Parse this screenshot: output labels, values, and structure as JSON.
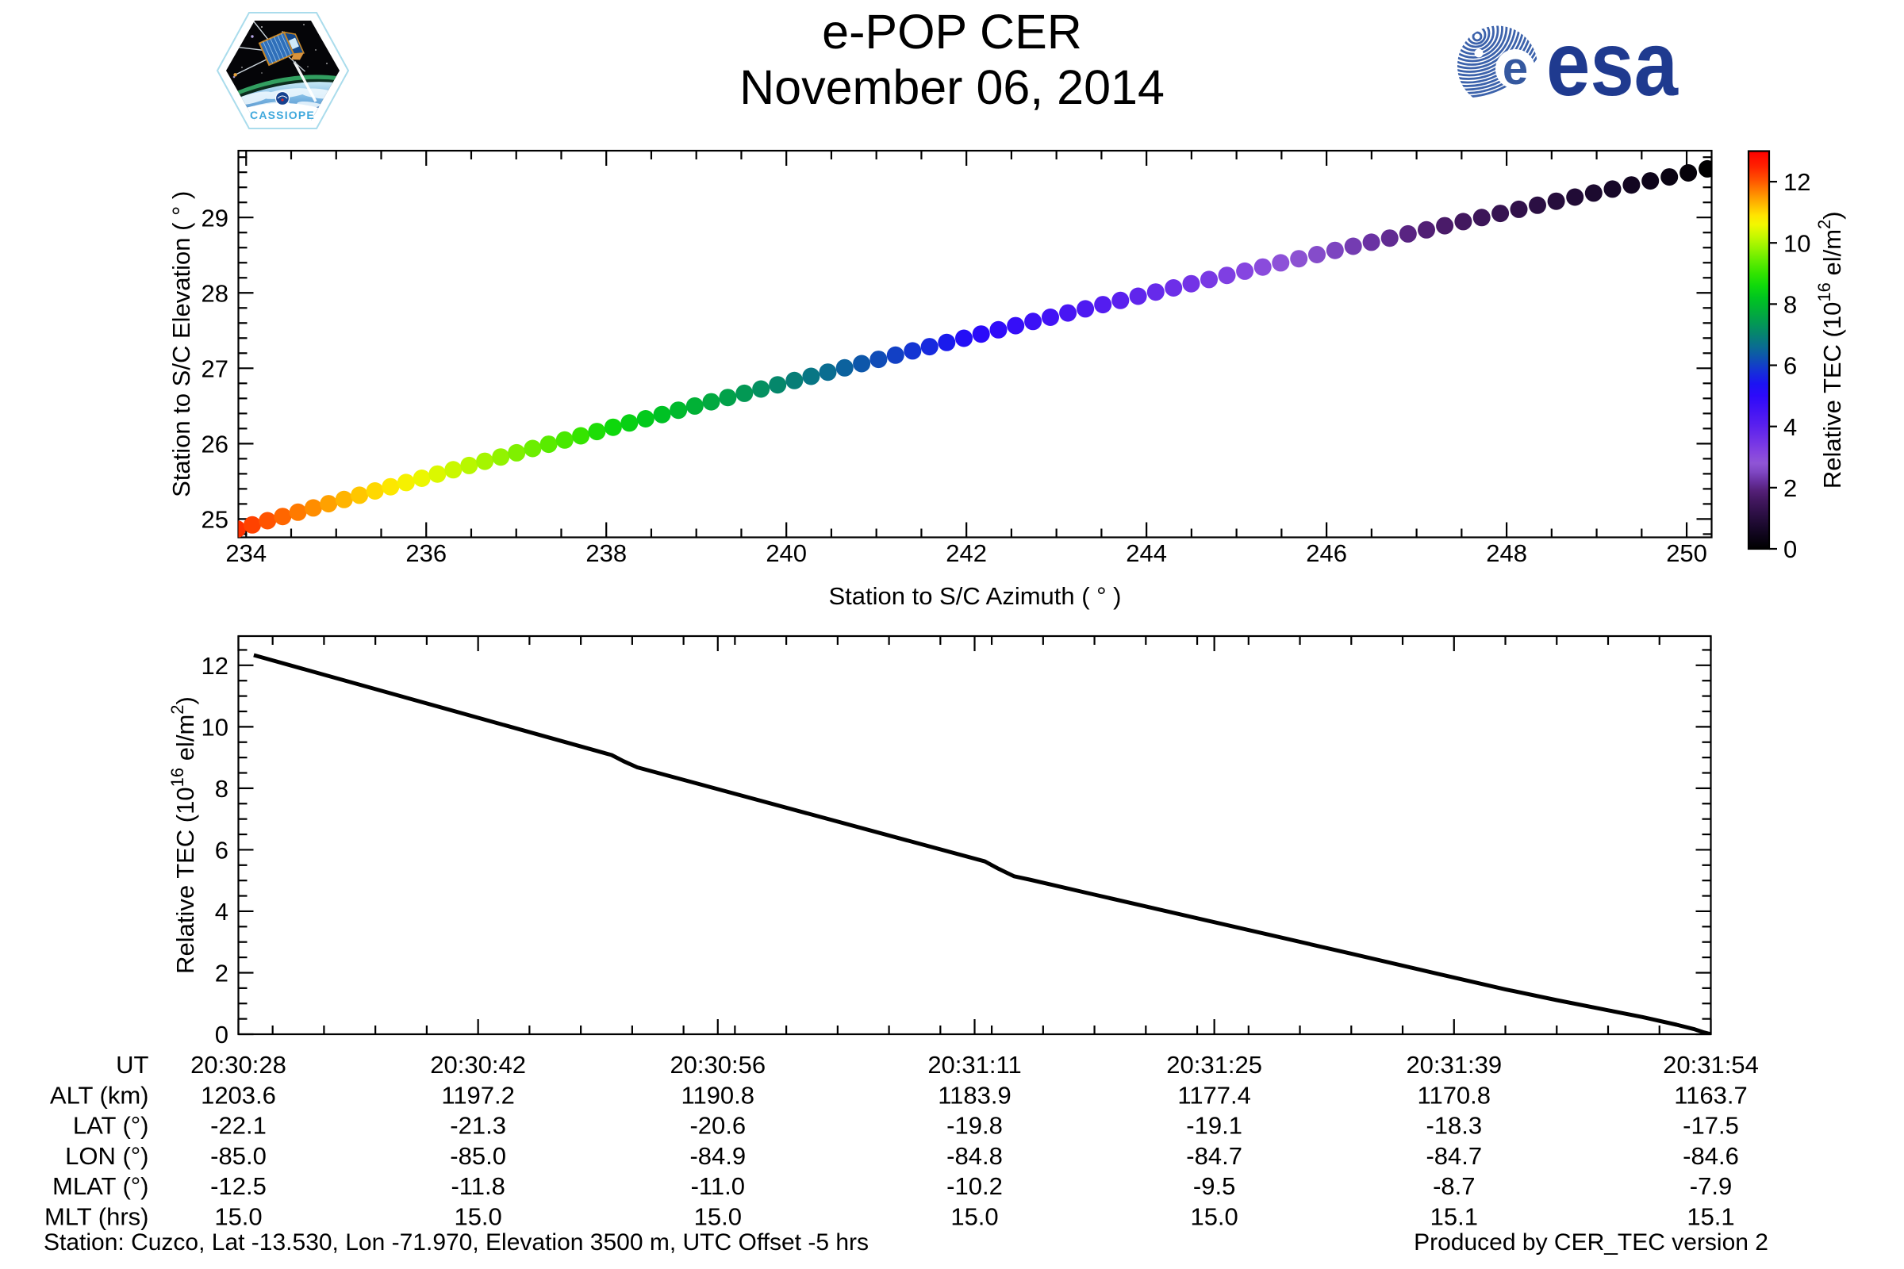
{
  "header": {
    "title": "e-POP CER",
    "date": "November 06, 2014",
    "esa_wordmark": "esa",
    "patch_text": "CASSIOPE"
  },
  "footer": {
    "station": "Station: Cuzco, Lat -13.530, Lon -71.970, Elevation 3500 m, UTC Offset -5 hrs",
    "produced": "Produced by CER_TEC version 2"
  },
  "colors": {
    "esa_blue": "#1f3a8f",
    "esa_stripe": "#3c62ab",
    "patch_text_blue": "#41a8dc",
    "line": "#000000",
    "background": "#ffffff"
  },
  "colorbar": {
    "label_parts": {
      "prefix": "Relative TEC (10",
      "sup1": "16",
      "mid": " el/m",
      "sup2": "2",
      "suffix": ")"
    },
    "ticks": [
      0,
      2,
      4,
      6,
      8,
      10,
      12
    ],
    "vmin": 0,
    "vmax": 13,
    "stops": [
      [
        0.0,
        "#000000"
      ],
      [
        0.4,
        "#0d0418"
      ],
      [
        0.8,
        "#1d0a30"
      ],
      [
        1.2,
        "#2f1048"
      ],
      [
        1.6,
        "#431860"
      ],
      [
        1.9,
        "#542078"
      ],
      [
        2.2,
        "#68309f"
      ],
      [
        2.5,
        "#7e46c2"
      ],
      [
        2.8,
        "#8f55d6"
      ],
      [
        3.1,
        "#8746df"
      ],
      [
        3.5,
        "#7434e6"
      ],
      [
        4.0,
        "#5b21ee"
      ],
      [
        4.5,
        "#4414f4"
      ],
      [
        5.0,
        "#2d0afa"
      ],
      [
        5.4,
        "#1c14f2"
      ],
      [
        5.8,
        "#1530d8"
      ],
      [
        6.2,
        "#0f4fb4"
      ],
      [
        6.6,
        "#0a6c92"
      ],
      [
        7.0,
        "#068370"
      ],
      [
        7.4,
        "#039a52"
      ],
      [
        7.8,
        "#01b037"
      ],
      [
        8.2,
        "#00c520"
      ],
      [
        8.6,
        "#0fd90b"
      ],
      [
        9.0,
        "#32e400"
      ],
      [
        9.4,
        "#5fec00"
      ],
      [
        9.8,
        "#92f300"
      ],
      [
        10.2,
        "#c4f800"
      ],
      [
        10.6,
        "#f2f700"
      ],
      [
        10.9,
        "#ffe400"
      ],
      [
        11.3,
        "#ffb400"
      ],
      [
        11.7,
        "#ff8000"
      ],
      [
        12.1,
        "#ff4d00"
      ],
      [
        12.5,
        "#ff2200"
      ],
      [
        13.0,
        "#ff0000"
      ]
    ]
  },
  "chart_data": [
    {
      "type": "scatter",
      "xlabel": "Station to S/C Azimuth ( ° )",
      "ylabel": "Station to S/C Elevation ( ° )",
      "xlim": [
        233.914,
        250.277
      ],
      "ylim": [
        24.757,
        29.886
      ],
      "xticks": [
        234,
        236,
        238,
        240,
        242,
        244,
        246,
        248,
        250
      ],
      "xminor_step": 0.5,
      "yticks": [
        25,
        26,
        27,
        28,
        29
      ],
      "yminor_step": 0.2,
      "color_by": "Relative TEC",
      "points": [
        [
          233.9,
          24.866,
          12.35
        ],
        [
          234.068,
          24.922,
          12.2
        ],
        [
          234.237,
          24.978,
          12.05
        ],
        [
          234.406,
          25.034,
          11.9
        ],
        [
          234.576,
          25.091,
          11.75
        ],
        [
          234.746,
          25.147,
          11.6
        ],
        [
          234.916,
          25.203,
          11.45
        ],
        [
          235.088,
          25.259,
          11.3
        ],
        [
          235.259,
          25.316,
          11.15
        ],
        [
          235.431,
          25.372,
          11.0
        ],
        [
          235.604,
          25.428,
          10.85
        ],
        [
          235.777,
          25.484,
          10.7
        ],
        [
          235.951,
          25.541,
          10.55
        ],
        [
          236.125,
          25.597,
          10.4
        ],
        [
          236.3,
          25.653,
          10.25
        ],
        [
          236.476,
          25.71,
          10.1
        ],
        [
          236.651,
          25.766,
          9.95
        ],
        [
          236.828,
          25.823,
          9.8
        ],
        [
          237.004,
          25.879,
          9.65
        ],
        [
          237.182,
          25.935,
          9.5
        ],
        [
          237.36,
          25.992,
          9.35
        ],
        [
          237.538,
          26.048,
          9.2
        ],
        [
          237.717,
          26.104,
          9.023
        ],
        [
          237.896,
          26.161,
          8.755
        ],
        [
          238.076,
          26.217,
          8.574
        ],
        [
          238.256,
          26.274,
          8.424
        ],
        [
          238.437,
          26.33,
          8.273
        ],
        [
          238.619,
          26.386,
          8.122
        ],
        [
          238.801,
          26.443,
          7.972
        ],
        [
          238.983,
          26.499,
          7.821
        ],
        [
          239.166,
          26.555,
          7.67
        ],
        [
          239.35,
          26.612,
          7.519
        ],
        [
          239.534,
          26.668,
          7.369
        ],
        [
          239.718,
          26.724,
          7.218
        ],
        [
          239.903,
          26.78,
          7.067
        ],
        [
          240.089,
          26.837,
          6.916
        ],
        [
          240.275,
          26.893,
          6.766
        ],
        [
          240.461,
          26.949,
          6.615
        ],
        [
          240.648,
          27.005,
          6.464
        ],
        [
          240.836,
          27.061,
          6.313
        ],
        [
          241.024,
          27.118,
          6.163
        ],
        [
          241.213,
          27.174,
          6.012
        ],
        [
          241.402,
          27.23,
          5.861
        ],
        [
          241.591,
          27.286,
          5.71
        ],
        [
          241.781,
          27.342,
          5.5
        ],
        [
          241.972,
          27.398,
          5.22
        ],
        [
          242.163,
          27.454,
          5.054
        ],
        [
          242.355,
          27.51,
          4.927
        ],
        [
          242.547,
          27.565,
          4.799
        ],
        [
          242.74,
          27.621,
          4.67
        ],
        [
          242.933,
          27.677,
          4.542
        ],
        [
          243.127,
          27.733,
          4.414
        ],
        [
          243.321,
          27.788,
          4.285
        ],
        [
          243.516,
          27.844,
          4.157
        ],
        [
          243.711,
          27.9,
          4.028
        ],
        [
          243.907,
          27.955,
          3.9
        ],
        [
          244.103,
          28.011,
          3.772
        ],
        [
          244.3,
          28.066,
          3.643
        ],
        [
          244.497,
          28.122,
          3.515
        ],
        [
          244.695,
          28.177,
          3.386
        ],
        [
          244.893,
          28.232,
          3.258
        ],
        [
          245.092,
          28.288,
          3.129
        ],
        [
          245.291,
          28.343,
          3.001
        ],
        [
          245.491,
          28.398,
          2.873
        ],
        [
          245.692,
          28.453,
          2.744
        ],
        [
          245.893,
          28.508,
          2.616
        ],
        [
          246.094,
          28.563,
          2.487
        ],
        [
          246.296,
          28.618,
          2.359
        ],
        [
          246.498,
          28.672,
          2.231
        ],
        [
          246.701,
          28.727,
          2.102
        ],
        [
          246.905,
          28.782,
          1.974
        ],
        [
          247.109,
          28.836,
          1.845
        ],
        [
          247.313,
          28.891,
          1.717
        ],
        [
          247.518,
          28.945,
          1.588
        ],
        [
          247.723,
          28.999,
          1.46
        ],
        [
          247.93,
          29.054,
          1.347
        ],
        [
          248.136,
          29.108,
          1.233
        ],
        [
          248.343,
          29.162,
          1.12
        ],
        [
          248.551,
          29.216,
          1.007
        ],
        [
          248.759,
          29.27,
          0.893
        ],
        [
          248.967,
          29.324,
          0.78
        ],
        [
          249.176,
          29.377,
          0.662
        ],
        [
          249.386,
          29.431,
          0.545
        ],
        [
          249.596,
          29.485,
          0.427
        ],
        [
          249.807,
          29.538,
          0.31
        ],
        [
          250.018,
          29.591,
          0.17
        ],
        [
          250.229,
          29.645,
          0.0
        ]
      ]
    },
    {
      "type": "line",
      "ylabel_parts": {
        "prefix": "Relative TEC (10",
        "sup1": "16",
        "mid": " el/m",
        "sup2": "2",
        "suffix": ")"
      },
      "xlim": [
        0,
        86
      ],
      "ylim": [
        0,
        12.95
      ],
      "xticks": [
        {
          "t": 0,
          "label": "20:30:28"
        },
        {
          "t": 14,
          "label": "20:30:42"
        },
        {
          "t": 28,
          "label": "20:30:56"
        },
        {
          "t": 43,
          "label": "20:31:11"
        },
        {
          "t": 57,
          "label": "20:31:25"
        },
        {
          "t": 71,
          "label": "20:31:39"
        },
        {
          "t": 86,
          "label": "20:31:54"
        }
      ],
      "xminor_step": 3,
      "xminor_offset": 2,
      "yticks": [
        0,
        2,
        4,
        6,
        8,
        10,
        12
      ],
      "yminor_step": 0.5,
      "points": [
        [
          0.9,
          12.33
        ],
        [
          21.8,
          9.08
        ],
        [
          22.5,
          8.88
        ],
        [
          23.3,
          8.68
        ],
        [
          43.6,
          5.62
        ],
        [
          44.4,
          5.38
        ],
        [
          45.3,
          5.14
        ],
        [
          46.2,
          5.03
        ],
        [
          50,
          4.54
        ],
        [
          55,
          3.9
        ],
        [
          60,
          3.26
        ],
        [
          65,
          2.62
        ],
        [
          70,
          1.97
        ],
        [
          74,
          1.46
        ],
        [
          77,
          1.11
        ],
        [
          80,
          0.78
        ],
        [
          82,
          0.56
        ],
        [
          84,
          0.31
        ],
        [
          85,
          0.17
        ],
        [
          85.6,
          0.06
        ],
        [
          86,
          0.0
        ]
      ]
    }
  ],
  "table": {
    "rows": [
      {
        "label": "UT",
        "values": [
          "20:30:28",
          "20:30:42",
          "20:30:56",
          "20:31:11",
          "20:31:25",
          "20:31:39",
          "20:31:54"
        ]
      },
      {
        "label": "ALT (km)",
        "values": [
          "1203.6",
          "1197.2",
          "1190.8",
          "1183.9",
          "1177.4",
          "1170.8",
          "1163.7"
        ]
      },
      {
        "label": "LAT (°)",
        "values": [
          "-22.1",
          "-21.3",
          "-20.6",
          "-19.8",
          "-19.1",
          "-18.3",
          "-17.5"
        ]
      },
      {
        "label": "LON (°)",
        "values": [
          "-85.0",
          "-85.0",
          "-84.9",
          "-84.8",
          "-84.7",
          "-84.7",
          "-84.6"
        ]
      },
      {
        "label": "MLAT (°)",
        "values": [
          "-12.5",
          "-11.8",
          "-11.0",
          "-10.2",
          "-9.5",
          "-8.7",
          "-7.9"
        ]
      },
      {
        "label": "MLT (hrs)",
        "values": [
          "15.0",
          "15.0",
          "15.0",
          "15.0",
          "15.0",
          "15.1",
          "15.1"
        ]
      }
    ]
  }
}
